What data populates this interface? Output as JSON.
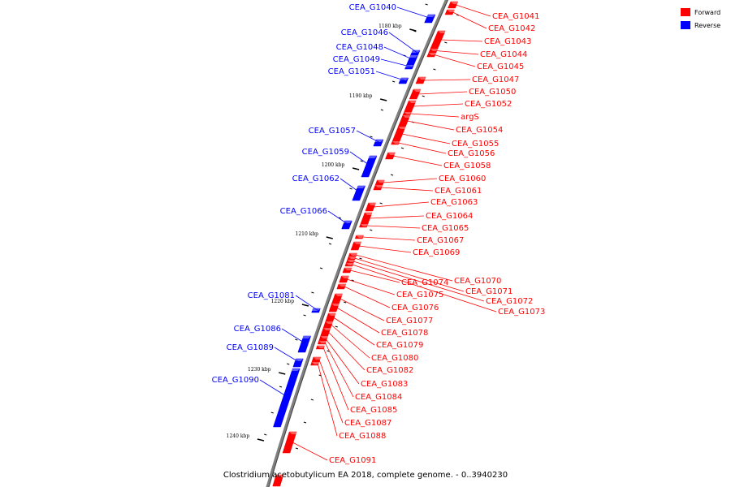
{
  "caption": "Clostridium acetobutylicum EA 2018, complete genome. - 0..3940230",
  "legend": [
    {
      "label": "Forward",
      "color": "#ff0000"
    },
    {
      "label": "Reverse",
      "color": "#0000ff"
    }
  ],
  "colors": {
    "forward": "#ff0000",
    "reverse": "#0000ff",
    "backbone": "#808080"
  },
  "kbp_markers": [
    "1180 kbp",
    "1190 kbp",
    "1200 kbp",
    "1210 kbp",
    "1220 kbp",
    "1230 kbp",
    "1240 kbp"
  ],
  "genes_reverse": [
    "CEA_G1040",
    "CEA_G1046",
    "CEA_G1048",
    "CEA_G1049",
    "CEA_G1051",
    "CEA_G1057",
    "CEA_G1059",
    "CEA_G1062",
    "CEA_G1066",
    "CEA_G1081",
    "CEA_G1086",
    "CEA_G1089",
    "CEA_G1090"
  ],
  "genes_forward": [
    "CEA_G1041",
    "CEA_G1042",
    "CEA_G1043",
    "CEA_G1044",
    "CEA_G1045",
    "CEA_G1047",
    "CEA_G1050",
    "CEA_G1052",
    "argS",
    "CEA_G1054",
    "CEA_G1055",
    "CEA_G1056",
    "CEA_G1058",
    "CEA_G1060",
    "CEA_G1061",
    "CEA_G1063",
    "CEA_G1064",
    "CEA_G1065",
    "CEA_G1067",
    "CEA_G1069",
    "CEA_G1070",
    "CEA_G1071",
    "CEA_G1072",
    "CEA_G1073",
    "CEA_G1074",
    "CEA_G1075",
    "CEA_G1076",
    "CEA_G1077",
    "CEA_G1078",
    "CEA_G1079",
    "CEA_G1080",
    "CEA_G1082",
    "CEA_G1083",
    "CEA_G1084",
    "CEA_G1085",
    "CEA_G1087",
    "CEA_G1088",
    "CEA_G1091"
  ]
}
